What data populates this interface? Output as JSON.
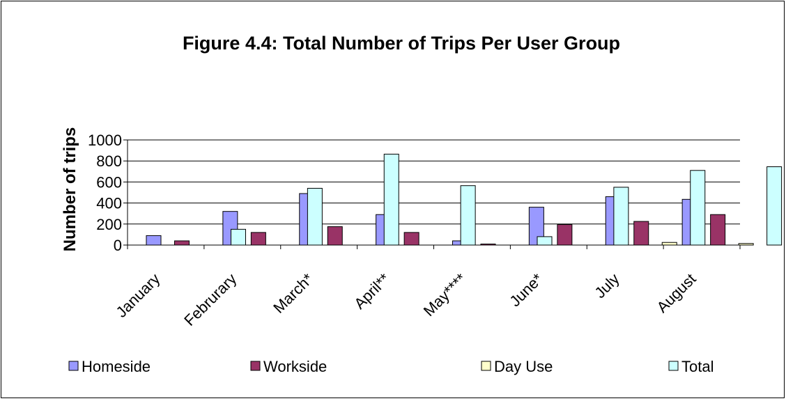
{
  "colors": {
    "homeside": "#9999ff",
    "workside": "#993366",
    "day_use": "#ffffcc",
    "total": "#ccffff",
    "gridline": "#000000",
    "bar_stroke": "#000000"
  },
  "chart_data": {
    "type": "bar",
    "title": "Figure 4.4: Total Number of Trips Per User Group",
    "xlabel": "",
    "ylabel": "Number of trips",
    "ylim": [
      0,
      1000
    ],
    "yticks": [
      "0",
      "200",
      "400",
      "600",
      "800",
      "1000"
    ],
    "ytick_values": [
      0,
      200,
      400,
      600,
      800,
      1000
    ],
    "grid": true,
    "legend_position": "bottom",
    "categories": [
      "January",
      "Februrary",
      "March*",
      "April**",
      "May****",
      "June*",
      "July",
      "August"
    ],
    "series": [
      {
        "name": "Homeside",
        "color_key": "homeside",
        "values": [
          90,
          320,
          490,
          290,
          40,
          360,
          460,
          435
        ]
      },
      {
        "name": "Workside",
        "color_key": "workside",
        "values": [
          40,
          120,
          175,
          120,
          10,
          195,
          225,
          290
        ]
      },
      {
        "name": "Day Use",
        "color_key": "day_use",
        "values": [
          0,
          0,
          0,
          0,
          0,
          0,
          25,
          15
        ]
      },
      {
        "name": "Total",
        "color_key": "total",
        "values": [
          150,
          540,
          865,
          565,
          80,
          550,
          710,
          745
        ]
      }
    ]
  }
}
